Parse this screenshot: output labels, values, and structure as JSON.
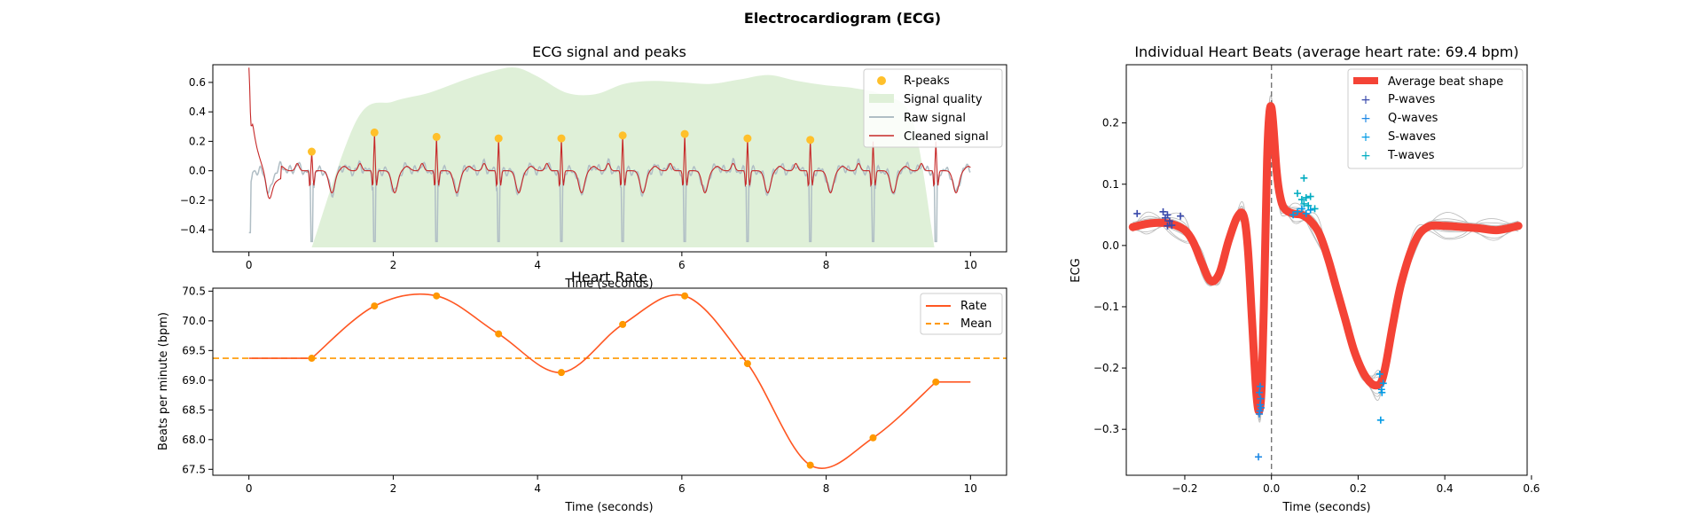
{
  "figure": {
    "suptitle": "Electrocardiogram (ECG)"
  },
  "colors": {
    "rpeak": "#FFC02B",
    "quality": "#DFF0D8",
    "raw": "#B0BEC5",
    "cleaned": "#C62828",
    "rate": "#FF5722",
    "mean": "#FF9800",
    "avg_beat": "#F44336",
    "individual_beats": "#BDBDBD",
    "p_wave": "#3949AB",
    "q_wave": "#1E88E5",
    "s_wave": "#039BE5",
    "t_wave": "#00ACC1",
    "vline": "#757575"
  },
  "chart_data": [
    {
      "id": "signal",
      "type": "line",
      "title": "ECG signal and peaks",
      "xlabel": "Time (seconds)",
      "ylabel": "",
      "xlim": [
        -0.5,
        10.5
      ],
      "ylim": [
        -0.55,
        0.72
      ],
      "xticks": [
        0,
        2,
        4,
        6,
        8,
        10
      ],
      "yticks": [
        -0.4,
        -0.2,
        0.0,
        0.2,
        0.4,
        0.6
      ],
      "ytick_labels": [
        "−0.4",
        "−0.2",
        "0.0",
        "0.2",
        "0.4",
        "0.6"
      ],
      "legend": [
        "R-peaks",
        "Signal quality",
        "Raw signal",
        "Cleaned signal"
      ],
      "legend_position": "top-right",
      "r_peaks": {
        "x": [
          0.87,
          1.74,
          2.6,
          3.46,
          4.33,
          5.18,
          6.04,
          6.91,
          7.78
        ],
        "y": [
          0.13,
          0.26,
          0.23,
          0.22,
          0.22,
          0.24,
          0.25,
          0.22,
          0.21
        ]
      },
      "signal_quality": {
        "x": [
          0.87,
          1.5,
          2.0,
          2.5,
          3.0,
          3.4,
          3.7,
          4.0,
          4.4,
          4.8,
          5.2,
          5.6,
          6.0,
          6.4,
          6.8,
          7.2,
          7.6,
          8.0,
          8.4,
          8.8,
          9.2,
          9.5
        ],
        "y": [
          -0.52,
          0.35,
          0.47,
          0.53,
          0.62,
          0.68,
          0.7,
          0.64,
          0.53,
          0.52,
          0.59,
          0.61,
          0.6,
          0.59,
          0.62,
          0.65,
          0.61,
          0.58,
          0.56,
          0.51,
          0.34,
          -0.52
        ]
      }
    },
    {
      "id": "heart_rate",
      "type": "line",
      "title": "Heart Rate",
      "xlabel": "Time (seconds)",
      "ylabel": "Beats per minute (bpm)",
      "xlim": [
        -0.5,
        10.5
      ],
      "ylim": [
        67.4,
        70.55
      ],
      "xticks": [
        0,
        2,
        4,
        6,
        8,
        10
      ],
      "yticks": [
        67.5,
        68.0,
        68.5,
        69.0,
        69.5,
        70.0,
        70.5
      ],
      "ytick_labels": [
        "67.5",
        "68.0",
        "68.5",
        "69.0",
        "69.5",
        "70.0",
        "70.5"
      ],
      "legend": [
        "Rate",
        "Mean"
      ],
      "legend_position": "top-right",
      "mean": 69.37,
      "rate_points": {
        "x": [
          0.87,
          1.74,
          2.6,
          3.46,
          4.33,
          5.18,
          6.04,
          6.91,
          7.78,
          8.65,
          9.52
        ],
        "y": [
          69.37,
          70.25,
          70.42,
          69.78,
          69.13,
          69.94,
          70.42,
          69.28,
          67.57,
          68.03,
          68.97
        ]
      }
    },
    {
      "id": "beats",
      "type": "line",
      "title": "Individual Heart Beats (average heart rate: 69.4 bpm)",
      "xlabel": "Time (seconds)",
      "ylabel": "ECG",
      "xlim": [
        -0.335,
        0.59
      ],
      "ylim": [
        -0.375,
        0.295
      ],
      "xticks": [
        -0.2,
        0.0,
        0.2,
        0.4,
        0.6
      ],
      "xtick_labels": [
        "−0.2",
        "0.0",
        "0.2",
        "0.4",
        "0.6"
      ],
      "yticks": [
        -0.3,
        -0.2,
        -0.1,
        0.0,
        0.1,
        0.2
      ],
      "ytick_labels": [
        "−0.3",
        "−0.2",
        "−0.1",
        "0.0",
        "0.1",
        "0.2"
      ],
      "legend": [
        "Average beat shape",
        "P-waves",
        "Q-waves",
        "S-waves",
        "T-waves"
      ],
      "legend_position": "top-right",
      "average_beat": {
        "x": [
          -0.32,
          -0.29,
          -0.26,
          -0.23,
          -0.2,
          -0.18,
          -0.16,
          -0.14,
          -0.12,
          -0.1,
          -0.08,
          -0.065,
          -0.055,
          -0.045,
          -0.035,
          -0.028,
          -0.022,
          -0.016,
          -0.01,
          -0.005,
          0.0,
          0.005,
          0.012,
          0.02,
          0.03,
          0.05,
          0.07,
          0.09,
          0.11,
          0.13,
          0.15,
          0.17,
          0.19,
          0.21,
          0.23,
          0.245,
          0.255,
          0.265,
          0.28,
          0.3,
          0.33,
          0.36,
          0.4,
          0.44,
          0.48,
          0.52,
          0.57
        ],
        "y": [
          0.03,
          0.035,
          0.037,
          0.035,
          0.025,
          0.005,
          -0.03,
          -0.058,
          -0.045,
          0.005,
          0.045,
          0.05,
          0.0,
          -0.12,
          -0.24,
          -0.27,
          -0.22,
          -0.05,
          0.14,
          0.215,
          0.225,
          0.19,
          0.12,
          0.08,
          0.06,
          0.052,
          0.05,
          0.04,
          0.02,
          -0.02,
          -0.07,
          -0.12,
          -0.17,
          -0.205,
          -0.225,
          -0.228,
          -0.22,
          -0.19,
          -0.13,
          -0.06,
          0.005,
          0.03,
          0.032,
          0.03,
          0.028,
          0.025,
          0.032
        ]
      },
      "p_waves": {
        "x": [
          -0.31,
          -0.25,
          -0.245,
          -0.24,
          -0.235,
          -0.23,
          -0.24,
          -0.21
        ],
        "y": [
          0.052,
          0.055,
          0.045,
          0.05,
          0.04,
          0.033,
          0.032,
          0.048
        ]
      },
      "q_waves": {
        "x": [
          -0.03,
          -0.028,
          -0.027,
          -0.026,
          -0.025,
          -0.028,
          -0.026,
          -0.024
        ],
        "y": [
          -0.345,
          -0.275,
          -0.27,
          -0.26,
          -0.25,
          -0.24,
          -0.23,
          -0.265
        ]
      },
      "s_waves": {
        "x": [
          0.05,
          0.06,
          0.07,
          0.08,
          0.09,
          0.25,
          0.255,
          0.252,
          0.258,
          0.254
        ],
        "y": [
          0.05,
          0.055,
          0.06,
          0.052,
          0.058,
          -0.21,
          -0.24,
          -0.285,
          -0.225,
          -0.235
        ]
      },
      "t_waves": {
        "x": [
          0.06,
          0.07,
          0.075,
          0.08,
          0.085,
          0.09,
          0.1,
          0.075
        ],
        "y": [
          0.085,
          0.075,
          0.068,
          0.078,
          0.065,
          0.08,
          0.06,
          0.11
        ]
      }
    }
  ]
}
